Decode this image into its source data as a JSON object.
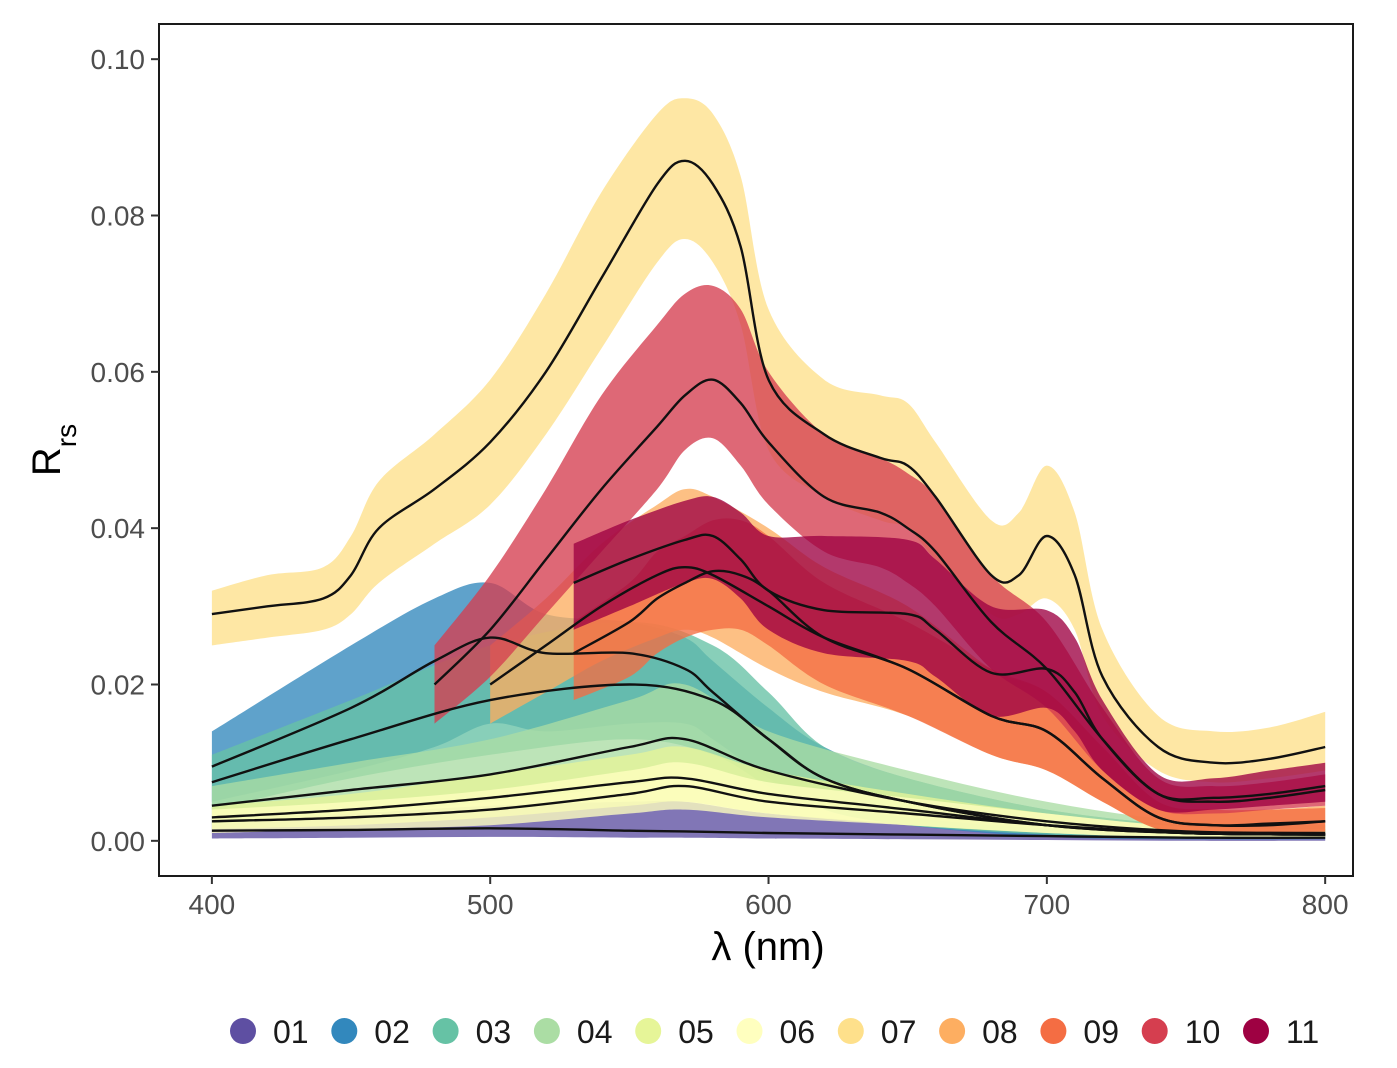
{
  "chart_data": {
    "type": "area",
    "title": "",
    "xlabel": "λ (nm)",
    "ylabel": "R",
    "ylabel_sub": "rs",
    "xlim": [
      381,
      810
    ],
    "ylim": [
      -0.0045,
      0.1045
    ],
    "x_ticks": [
      400,
      500,
      600,
      700,
      800
    ],
    "x_tick_labels": [
      "400",
      "500",
      "600",
      "700",
      "800"
    ],
    "y_ticks": [
      0,
      0.02,
      0.04,
      0.06,
      0.08,
      0.1
    ],
    "y_tick_labels": [
      "0.00",
      "0.02",
      "0.04",
      "0.06",
      "0.08",
      "0.10"
    ],
    "grid": false,
    "legend_position": "bottom",
    "series": [
      {
        "name": "01",
        "color": "#5E4FA2",
        "x": [
          400,
          450,
          500,
          550,
          570,
          600,
          650,
          700,
          750,
          800
        ],
        "mean": [
          0.0013,
          0.0014,
          0.0016,
          0.0013,
          0.0012,
          0.001,
          0.0008,
          0.0006,
          0.0004,
          0.0004
        ],
        "lower": [
          0.0003,
          0.0004,
          0.0005,
          0.0004,
          0.0004,
          0.0003,
          0.0002,
          0.0001,
          0.0,
          0.0
        ],
        "upper": [
          0.003,
          0.0035,
          0.0045,
          0.005,
          0.005,
          0.0035,
          0.0022,
          0.0015,
          0.001,
          0.001
        ]
      },
      {
        "name": "02",
        "color": "#3288BD",
        "x": [
          400,
          450,
          480,
          500,
          520,
          550,
          570,
          580,
          600,
          620,
          650,
          700,
          750,
          800
        ],
        "mean": [
          0.0095,
          0.017,
          0.023,
          0.026,
          0.024,
          0.024,
          0.022,
          0.019,
          0.013,
          0.008,
          0.005,
          0.002,
          0.001,
          0.0008
        ],
        "lower": [
          0.005,
          0.009,
          0.012,
          0.015,
          0.014,
          0.015,
          0.015,
          0.013,
          0.008,
          0.004,
          0.002,
          0.0005,
          0.0002,
          0.0002
        ],
        "upper": [
          0.014,
          0.025,
          0.031,
          0.033,
          0.029,
          0.028,
          0.026,
          0.023,
          0.017,
          0.012,
          0.008,
          0.004,
          0.002,
          0.0015
        ]
      },
      {
        "name": "03",
        "color": "#66C2A5",
        "x": [
          400,
          450,
          500,
          550,
          580,
          600,
          620,
          650,
          700,
          750,
          800
        ],
        "mean": [
          0.0075,
          0.013,
          0.018,
          0.02,
          0.018,
          0.013,
          0.008,
          0.005,
          0.002,
          0.001,
          0.0008
        ],
        "lower": [
          0.004,
          0.008,
          0.011,
          0.013,
          0.011,
          0.007,
          0.004,
          0.002,
          0.0008,
          0.0003,
          0.0003
        ],
        "upper": [
          0.011,
          0.018,
          0.025,
          0.028,
          0.025,
          0.019,
          0.012,
          0.008,
          0.004,
          0.002,
          0.0015
        ]
      },
      {
        "name": "04",
        "color": "#ABDDA4",
        "x": [
          400,
          450,
          500,
          550,
          570,
          600,
          650,
          700,
          750,
          800
        ],
        "mean": [
          0.0045,
          0.0065,
          0.0085,
          0.012,
          0.013,
          0.009,
          0.005,
          0.0025,
          0.0012,
          0.001
        ],
        "lower": [
          0.002,
          0.0035,
          0.005,
          0.007,
          0.008,
          0.0055,
          0.003,
          0.0015,
          0.0006,
          0.0005
        ],
        "upper": [
          0.007,
          0.01,
          0.013,
          0.018,
          0.02,
          0.014,
          0.009,
          0.005,
          0.0025,
          0.002
        ]
      },
      {
        "name": "05",
        "color": "#E6F598",
        "x": [
          400,
          450,
          500,
          550,
          570,
          600,
          650,
          700,
          750,
          800
        ],
        "mean": [
          0.003,
          0.004,
          0.0055,
          0.0075,
          0.008,
          0.006,
          0.004,
          0.002,
          0.001,
          0.0008
        ],
        "lower": [
          0.0015,
          0.002,
          0.003,
          0.0045,
          0.005,
          0.0035,
          0.002,
          0.001,
          0.0004,
          0.0003
        ],
        "upper": [
          0.0045,
          0.006,
          0.0085,
          0.011,
          0.012,
          0.009,
          0.006,
          0.0035,
          0.0018,
          0.0015
        ]
      },
      {
        "name": "06",
        "color": "#FFFFBF",
        "x": [
          400,
          450,
          500,
          550,
          570,
          600,
          650,
          700,
          750,
          800
        ],
        "mean": [
          0.0025,
          0.003,
          0.004,
          0.006,
          0.007,
          0.005,
          0.0035,
          0.002,
          0.001,
          0.0008
        ],
        "lower": [
          0.001,
          0.0015,
          0.002,
          0.0035,
          0.004,
          0.003,
          0.002,
          0.001,
          0.0004,
          0.0003
        ],
        "upper": [
          0.004,
          0.005,
          0.0065,
          0.009,
          0.01,
          0.0075,
          0.0055,
          0.0035,
          0.0018,
          0.0015
        ]
      },
      {
        "name": "07",
        "color": "#FEE08B",
        "x": [
          400,
          420,
          440,
          450,
          460,
          480,
          500,
          520,
          540,
          560,
          570,
          580,
          590,
          600,
          620,
          640,
          650,
          660,
          680,
          690,
          700,
          710,
          720,
          740,
          760,
          780,
          800
        ],
        "mean": [
          0.029,
          0.03,
          0.031,
          0.034,
          0.04,
          0.045,
          0.051,
          0.06,
          0.072,
          0.084,
          0.087,
          0.084,
          0.076,
          0.059,
          0.052,
          0.049,
          0.048,
          0.044,
          0.034,
          0.034,
          0.039,
          0.034,
          0.021,
          0.012,
          0.01,
          0.0105,
          0.012
        ],
        "lower": [
          0.025,
          0.026,
          0.027,
          0.029,
          0.033,
          0.038,
          0.043,
          0.052,
          0.063,
          0.074,
          0.077,
          0.074,
          0.066,
          0.05,
          0.044,
          0.041,
          0.04,
          0.036,
          0.029,
          0.029,
          0.031,
          0.027,
          0.016,
          0.009,
          0.0075,
          0.008,
          0.009
        ],
        "upper": [
          0.032,
          0.034,
          0.035,
          0.039,
          0.046,
          0.052,
          0.059,
          0.07,
          0.083,
          0.093,
          0.095,
          0.093,
          0.085,
          0.068,
          0.059,
          0.057,
          0.056,
          0.051,
          0.041,
          0.042,
          0.048,
          0.042,
          0.027,
          0.016,
          0.014,
          0.0145,
          0.0165
        ]
      },
      {
        "name": "08",
        "color": "#FDAE61",
        "x": [
          500,
          520,
          540,
          560,
          570,
          580,
          600,
          620,
          650,
          680,
          700,
          720,
          740,
          760,
          780,
          800
        ],
        "mean": [
          0.02,
          0.025,
          0.03,
          0.034,
          0.035,
          0.034,
          0.03,
          0.026,
          0.022,
          0.016,
          0.014,
          0.008,
          0.003,
          0.002,
          0.002,
          0.0025
        ],
        "lower": [
          0.015,
          0.019,
          0.023,
          0.026,
          0.027,
          0.026,
          0.022,
          0.019,
          0.016,
          0.011,
          0.009,
          0.005,
          0.0015,
          0.001,
          0.001,
          0.001
        ],
        "upper": [
          0.025,
          0.031,
          0.038,
          0.043,
          0.045,
          0.044,
          0.04,
          0.035,
          0.03,
          0.022,
          0.019,
          0.012,
          0.005,
          0.004,
          0.004,
          0.0045
        ]
      },
      {
        "name": "09",
        "color": "#F46D43",
        "x": [
          530,
          550,
          560,
          570,
          580,
          590,
          600,
          620,
          650,
          680,
          700,
          720,
          740,
          760,
          780,
          800
        ],
        "mean": [
          0.024,
          0.028,
          0.031,
          0.033,
          0.0345,
          0.034,
          0.032,
          0.026,
          0.022,
          0.016,
          0.014,
          0.008,
          0.003,
          0.002,
          0.0022,
          0.0025
        ],
        "lower": [
          0.018,
          0.021,
          0.024,
          0.026,
          0.027,
          0.027,
          0.025,
          0.02,
          0.016,
          0.011,
          0.009,
          0.005,
          0.0015,
          0.001,
          0.001,
          0.0012
        ],
        "upper": [
          0.028,
          0.033,
          0.037,
          0.039,
          0.041,
          0.041,
          0.039,
          0.033,
          0.028,
          0.022,
          0.019,
          0.012,
          0.005,
          0.004,
          0.004,
          0.0042
        ]
      },
      {
        "name": "10",
        "color": "#D53E4F",
        "x": [
          480,
          500,
          520,
          540,
          560,
          570,
          580,
          590,
          600,
          620,
          640,
          650,
          660,
          680,
          700,
          720,
          740,
          760,
          780,
          800
        ],
        "mean": [
          0.02,
          0.027,
          0.036,
          0.045,
          0.053,
          0.057,
          0.059,
          0.056,
          0.051,
          0.044,
          0.042,
          0.04,
          0.037,
          0.028,
          0.022,
          0.013,
          0.006,
          0.005,
          0.0055,
          0.0065
        ],
        "lower": [
          0.015,
          0.021,
          0.029,
          0.037,
          0.045,
          0.05,
          0.0515,
          0.048,
          0.043,
          0.037,
          0.035,
          0.033,
          0.03,
          0.022,
          0.017,
          0.009,
          0.004,
          0.0035,
          0.004,
          0.0045
        ],
        "upper": [
          0.025,
          0.034,
          0.045,
          0.057,
          0.066,
          0.07,
          0.071,
          0.068,
          0.06,
          0.052,
          0.049,
          0.047,
          0.044,
          0.034,
          0.028,
          0.017,
          0.008,
          0.007,
          0.0075,
          0.0085
        ]
      },
      {
        "name": "11",
        "color": "#9E0142",
        "x": [
          530,
          550,
          570,
          580,
          590,
          600,
          620,
          650,
          660,
          680,
          700,
          710,
          720,
          740,
          760,
          780,
          800
        ],
        "mean": [
          0.033,
          0.036,
          0.0385,
          0.039,
          0.036,
          0.032,
          0.0295,
          0.029,
          0.027,
          0.0215,
          0.022,
          0.019,
          0.013,
          0.006,
          0.0055,
          0.006,
          0.007
        ],
        "lower": [
          0.027,
          0.03,
          0.033,
          0.0335,
          0.031,
          0.027,
          0.024,
          0.023,
          0.021,
          0.016,
          0.017,
          0.014,
          0.009,
          0.004,
          0.004,
          0.0045,
          0.005
        ],
        "upper": [
          0.038,
          0.041,
          0.0435,
          0.044,
          0.042,
          0.039,
          0.039,
          0.0385,
          0.036,
          0.03,
          0.0295,
          0.026,
          0.018,
          0.0085,
          0.008,
          0.009,
          0.01
        ]
      }
    ]
  }
}
